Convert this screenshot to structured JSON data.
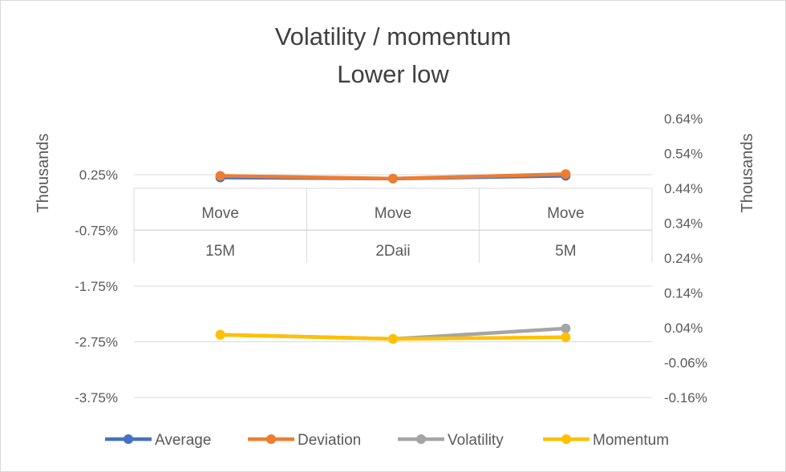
{
  "chart_data": {
    "type": "line",
    "title": [
      "Volatility / momentum",
      "Lower low"
    ],
    "y_left": {
      "label": "Thousands",
      "ticks": [
        "0.25%",
        "-0.75%",
        "-1.75%",
        "-2.75%",
        "-3.75%"
      ],
      "tick_values": [
        0.25,
        -0.75,
        -1.75,
        -2.75,
        -3.75
      ],
      "range": [
        -3.75,
        0.25
      ]
    },
    "y_right": {
      "label": "Thousands",
      "ticks": [
        "0.64%",
        "0.54%",
        "0.44%",
        "0.34%",
        "0.24%",
        "0.14%",
        "0.04%",
        "-0.06%",
        "-0.16%"
      ],
      "tick_values": [
        0.64,
        0.54,
        0.44,
        0.34,
        0.24,
        0.14,
        0.04,
        -0.06,
        -0.16
      ],
      "range": [
        -0.16,
        0.64
      ]
    },
    "categories": [
      [
        "Move",
        "15M"
      ],
      [
        "Move",
        "2Daii"
      ],
      [
        "Move",
        "5M"
      ]
    ],
    "series": [
      {
        "name": "Average",
        "axis": "left",
        "color": "#4472C4",
        "values": [
          0.2,
          0.18,
          0.23
        ]
      },
      {
        "name": "Deviation",
        "axis": "left",
        "color": "#ED7D31",
        "values": [
          0.23,
          0.18,
          0.26
        ]
      },
      {
        "name": "Volatility",
        "axis": "right",
        "color": "#A5A5A5",
        "values": [
          0.02,
          0.008,
          0.038
        ]
      },
      {
        "name": "Momentum",
        "axis": "right",
        "color": "#FFC000",
        "values": [
          0.02,
          0.008,
          0.013
        ]
      }
    ],
    "grid": true,
    "legend": "bottom"
  }
}
